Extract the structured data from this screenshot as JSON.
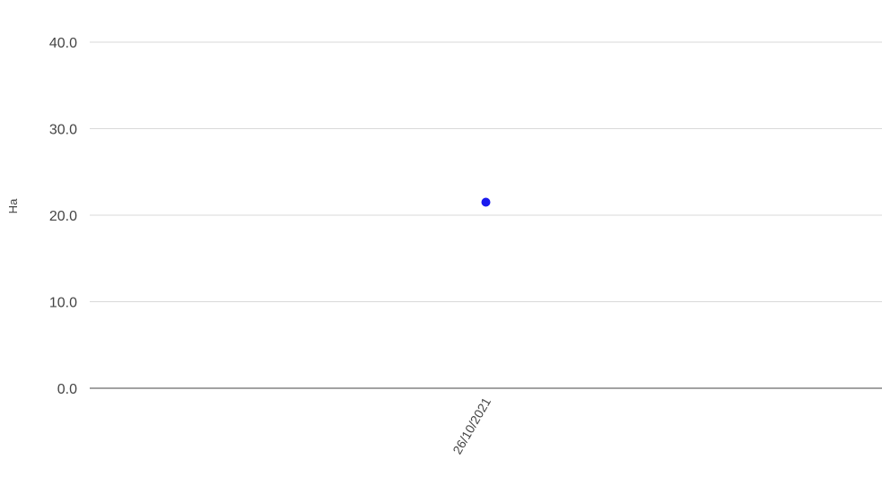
{
  "chart_data": {
    "type": "scatter",
    "title": "",
    "xlabel": "",
    "ylabel": "Ha",
    "categories": [
      "26/10/2021"
    ],
    "series": [
      {
        "values": [
          21.5
        ],
        "color": "#1a1aee"
      }
    ],
    "ylim": [
      0,
      40
    ],
    "yticks": [
      "0.0",
      "10.0",
      "20.0",
      "30.0",
      "40.0"
    ],
    "grid": true,
    "legend": "none",
    "colors": {
      "gridline": "#d9d9d9",
      "baseline": "#444444",
      "text": "#444444"
    }
  }
}
